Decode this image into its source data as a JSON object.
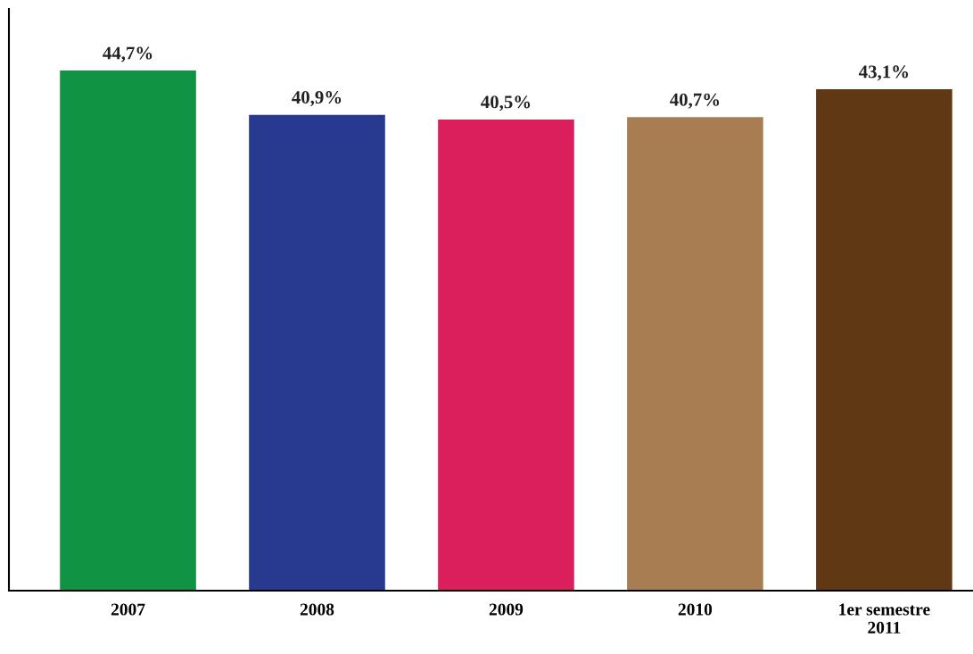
{
  "chart_data": {
    "type": "bar",
    "categories": [
      "2007",
      "2008",
      "2009",
      "2010",
      "1er semestre\n2011"
    ],
    "values": [
      44.7,
      40.9,
      40.5,
      40.7,
      43.1
    ],
    "colors": [
      "#109444",
      "#283a8f",
      "#db1e5c",
      "#a87d52",
      "#603814"
    ],
    "value_labels": [
      "44,7%",
      "40,9%",
      "40,5%",
      "40,7%",
      "43,1%"
    ],
    "ylim": [
      0,
      50
    ],
    "tick_labels": "x",
    "grid": false,
    "legend": false
  }
}
